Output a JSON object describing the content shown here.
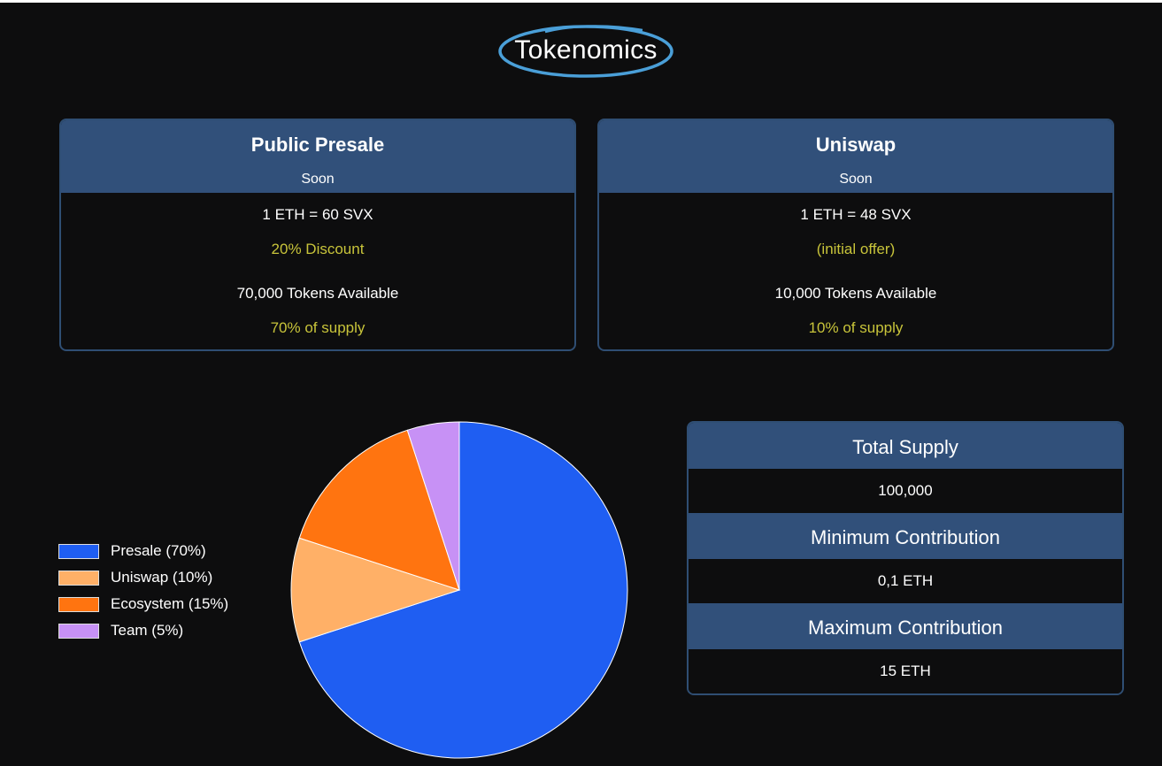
{
  "page": {
    "title": "Tokenomics"
  },
  "cards": [
    {
      "title": "Public Presale",
      "status": "Soon",
      "rate": "1 ETH = 60 SVX",
      "note": "20% Discount",
      "tokens": "70,000 Tokens Available",
      "supply": "70% of supply"
    },
    {
      "title": "Uniswap",
      "status": "Soon",
      "rate": "1 ETH = 48 SVX",
      "note": "(initial offer)",
      "tokens": "10,000 Tokens Available",
      "supply": "10% of supply"
    }
  ],
  "info": {
    "total_supply_label": "Total Supply",
    "total_supply_value": "100,000",
    "min_label": "Minimum Contribution",
    "min_value": "0,1 ETH",
    "max_label": "Maximum Contribution",
    "max_value": "15 ETH"
  },
  "colors": {
    "background": "#0d0d0e",
    "header": "#31507a",
    "border": "#2f4e73",
    "accent_text": "#c8c43a",
    "title_ring": "#4a9fd8"
  },
  "chart_data": {
    "type": "pie",
    "legend_position": "left",
    "series": [
      {
        "name": "Presale (70%)",
        "value": 70,
        "color": "#1f5ef2"
      },
      {
        "name": "Uniswap (10%)",
        "value": 10,
        "color": "#ffb067"
      },
      {
        "name": "Ecosystem (15%)",
        "value": 15,
        "color": "#ff7410"
      },
      {
        "name": "Team (5%)",
        "value": 5,
        "color": "#c791f5"
      }
    ]
  }
}
